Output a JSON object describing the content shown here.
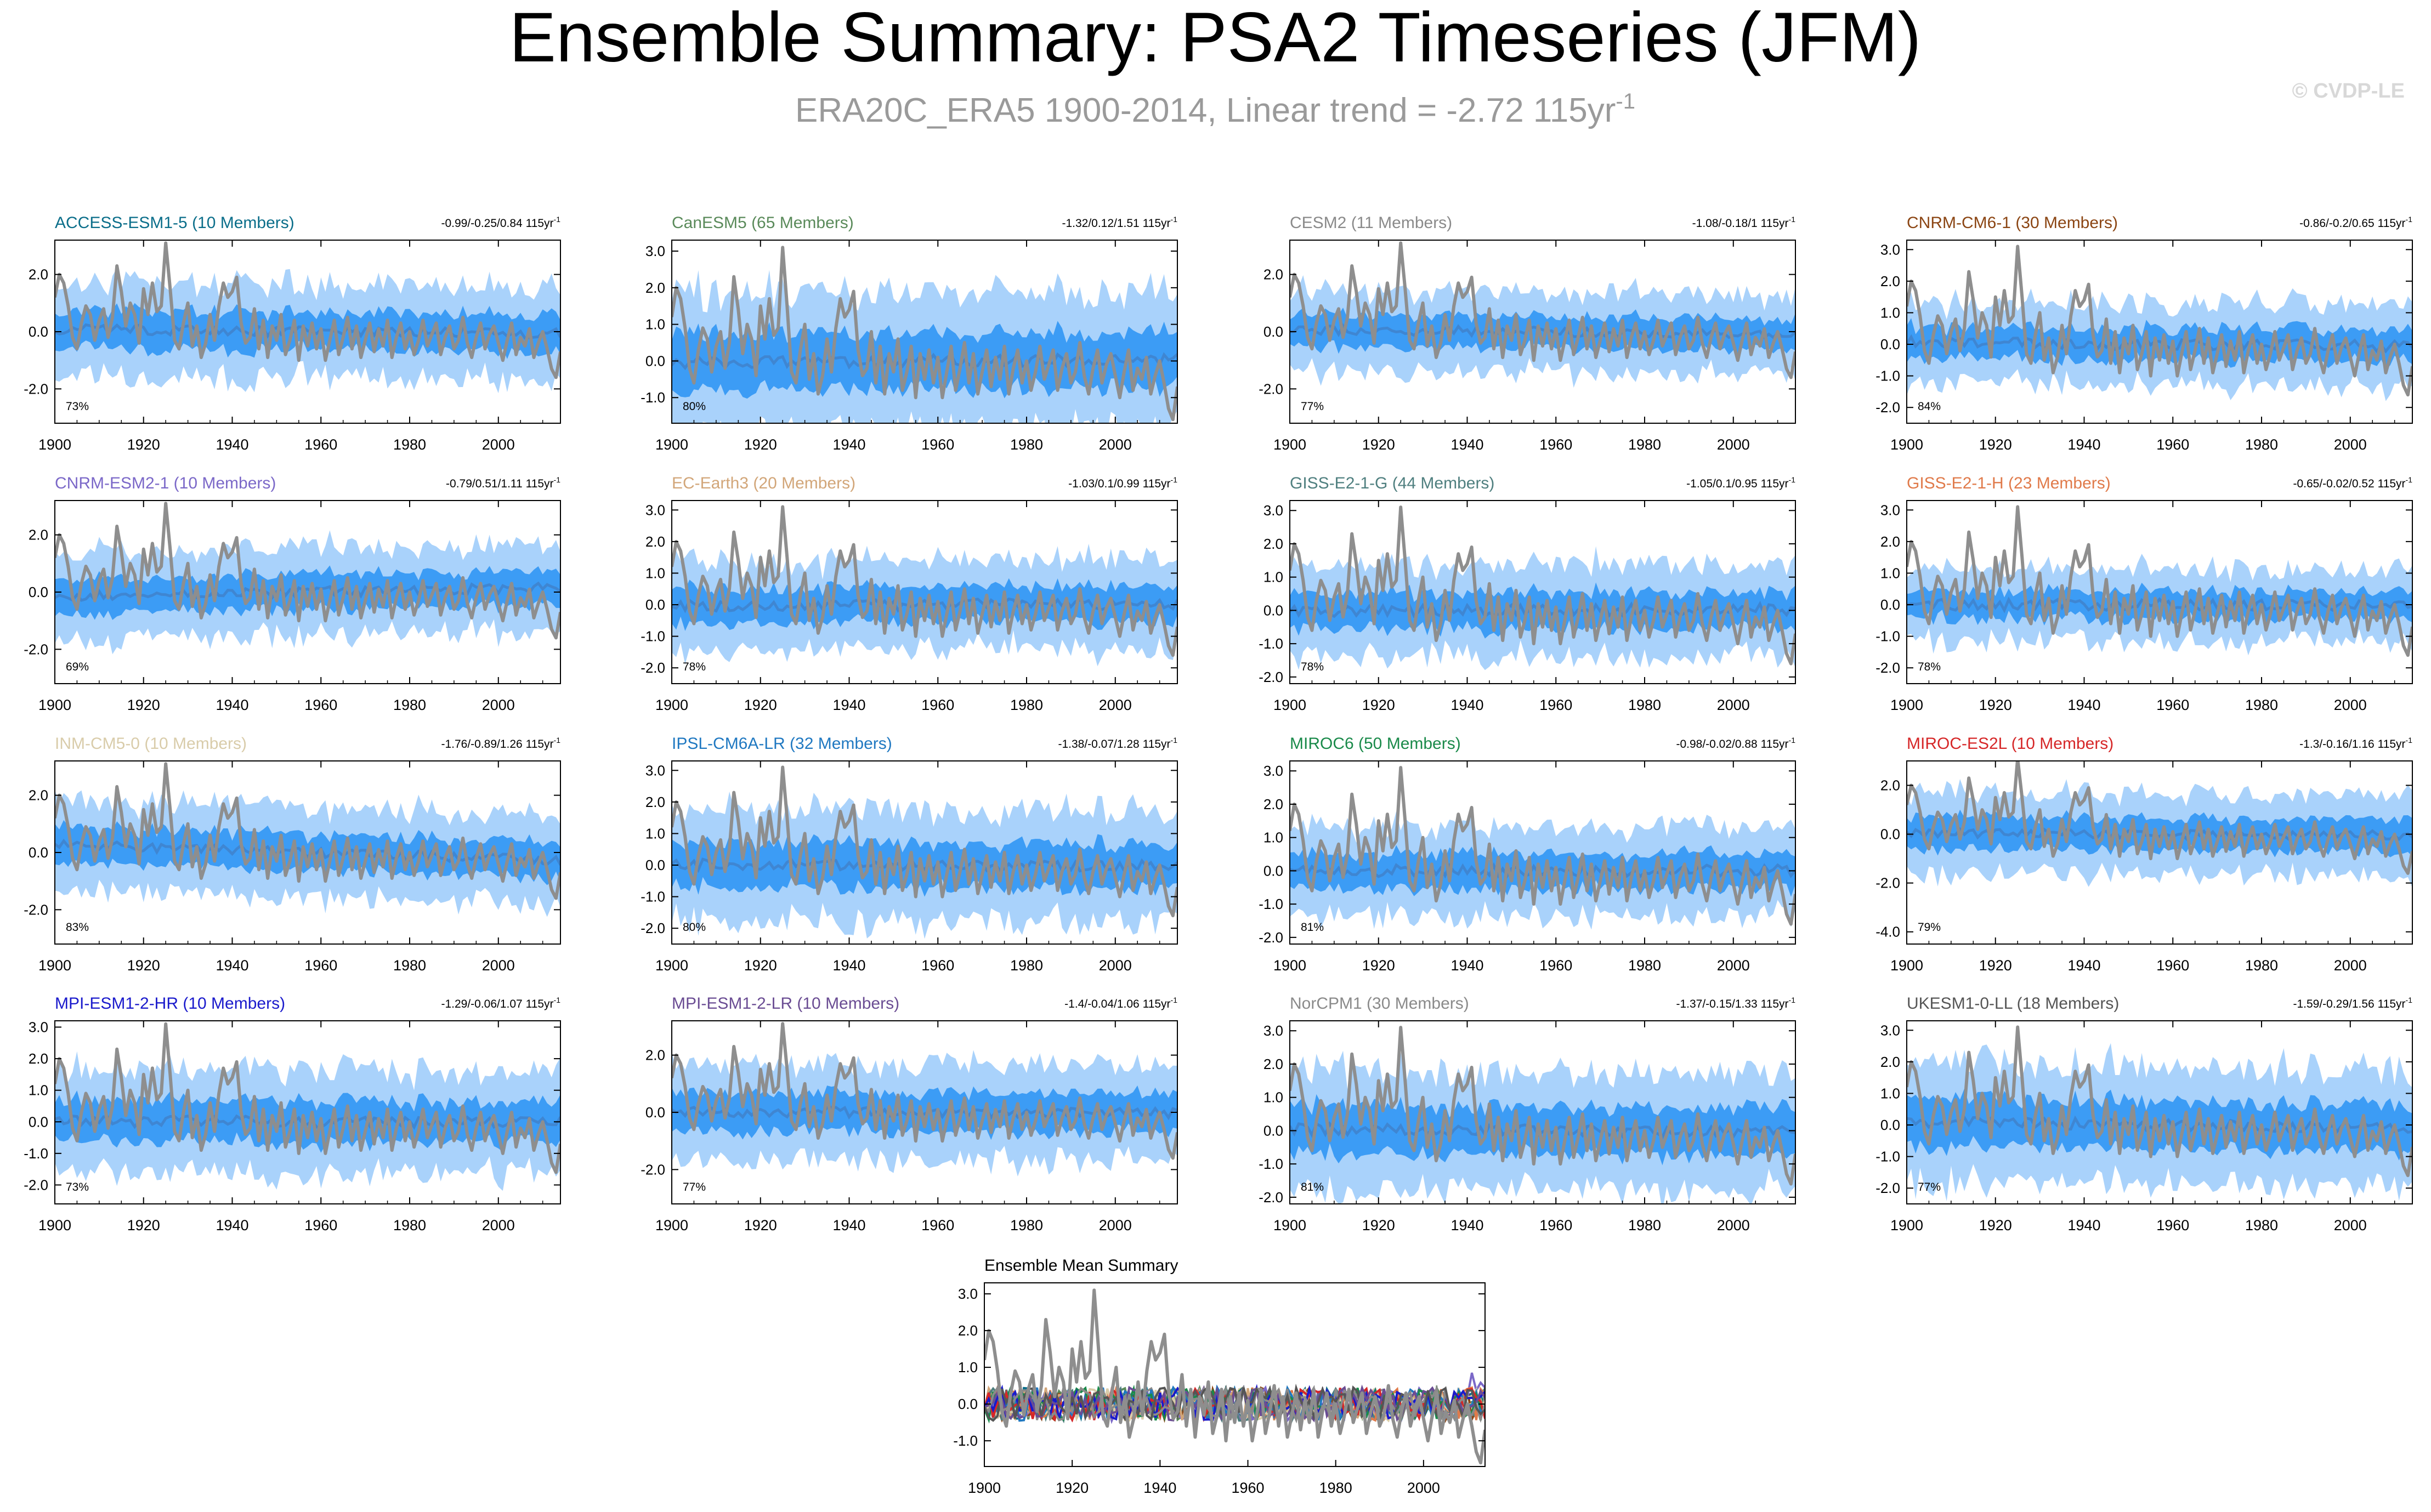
{
  "page": {
    "title": "Ensemble Summary: PSA2 Timeseries (JFM)",
    "subtitle_main": "ERA20C_ERA5 1900-2014, Linear trend = -2.72 115yr",
    "subtitle_sup": "-1",
    "watermark": "© CVDP-LE"
  },
  "colors": {
    "envelope_outer": "#a9d2fb",
    "envelope_inner": "#3c9cf5",
    "ensemble_mean": "#3f86d2",
    "observations": "#8e8e8e"
  },
  "chart_data": {
    "type": "line",
    "x_range": [
      1900,
      2014
    ],
    "x_ticks": [
      1900,
      1920,
      1940,
      1960,
      1980,
      2000
    ],
    "observations_label": "ERA20C_ERA5",
    "panels": [
      {
        "model": "ACCESS-ESM1-5",
        "members": "(10 Members)",
        "title_color": "#0b6e8a",
        "trend_main": "-0.99/-0.25/0.84 115yr",
        "trend_sup": "-1",
        "pct": "73%",
        "ylim": [
          -3.2,
          3.2
        ],
        "yticks": [
          -2,
          0,
          2
        ],
        "ytick_labels": [
          "-2.0",
          "0.0",
          "2.0"
        ],
        "mean_offset": 0.0,
        "trend_slope": -0.2,
        "spread": 1.2
      },
      {
        "model": "CanESM5",
        "members": "(65 Members)",
        "title_color": "#5a8a5a",
        "trend_main": "-1.32/0.12/1.51 115yr",
        "trend_sup": "-1",
        "pct": "80%",
        "ylim": [
          -1.7,
          3.3
        ],
        "yticks": [
          -1,
          0,
          1,
          2,
          3
        ],
        "ytick_labels": [
          "-1.0",
          "0.0",
          "1.0",
          "2.0",
          "3.0"
        ],
        "mean_offset": 0.0,
        "trend_slope": 0.1,
        "spread": 1.4
      },
      {
        "model": "CESM2",
        "members": "(11 Members)",
        "title_color": "#8a8a8a",
        "trend_main": "-1.08/-0.18/1 115yr",
        "trend_sup": "-1",
        "pct": "77%",
        "ylim": [
          -3.2,
          3.2
        ],
        "yticks": [
          -2,
          0,
          2
        ],
        "ytick_labels": [
          "-2.0",
          "0.0",
          "2.0"
        ],
        "mean_offset": 0.0,
        "trend_slope": -0.15,
        "spread": 1.0
      },
      {
        "model": "CNRM-CM6-1",
        "members": "(30 Members)",
        "title_color": "#8b4513",
        "trend_main": "-0.86/-0.2/0.65 115yr",
        "trend_sup": "-1",
        "pct": "84%",
        "ylim": [
          -2.5,
          3.3
        ],
        "yticks": [
          -2,
          -1,
          0,
          1,
          2,
          3
        ],
        "ytick_labels": [
          "-2.0",
          "-1.0",
          "0.0",
          "1.0",
          "2.0",
          "3.0"
        ],
        "mean_offset": 0.0,
        "trend_slope": -0.15,
        "spread": 0.9
      },
      {
        "model": "CNRM-ESM2-1",
        "members": "(10 Members)",
        "title_color": "#7b68c8",
        "trend_main": "-0.79/0.51/1.11 115yr",
        "trend_sup": "-1",
        "pct": "69%",
        "ylim": [
          -3.2,
          3.2
        ],
        "yticks": [
          -2,
          0,
          2
        ],
        "ytick_labels": [
          "-2.0",
          "0.0",
          "2.0"
        ],
        "mean_offset": 0.0,
        "trend_slope": 0.4,
        "spread": 1.1
      },
      {
        "model": "EC-Earth3",
        "members": "(20 Members)",
        "title_color": "#d2a679",
        "trend_main": "-1.03/0.1/0.99 115yr",
        "trend_sup": "-1",
        "pct": "78%",
        "ylim": [
          -2.5,
          3.3
        ],
        "yticks": [
          -2,
          -1,
          0,
          1,
          2,
          3
        ],
        "ytick_labels": [
          "-2.0",
          "-1.0",
          "0.0",
          "1.0",
          "2.0",
          "3.0"
        ],
        "mean_offset": 0.0,
        "trend_slope": 0.08,
        "spread": 1.0
      },
      {
        "model": "GISS-E2-1-G",
        "members": "(44 Members)",
        "title_color": "#4f7f7f",
        "trend_main": "-1.05/0.1/0.95 115yr",
        "trend_sup": "-1",
        "pct": "78%",
        "ylim": [
          -2.2,
          3.3
        ],
        "yticks": [
          -2,
          -1,
          0,
          1,
          2,
          3
        ],
        "ytick_labels": [
          "-2.0",
          "-1.0",
          "0.0",
          "1.0",
          "2.0",
          "3.0"
        ],
        "mean_offset": 0.0,
        "trend_slope": 0.08,
        "spread": 1.0
      },
      {
        "model": "GISS-E2-1-H",
        "members": "(23 Members)",
        "title_color": "#e07a4a",
        "trend_main": "-0.65/-0.02/0.52 115yr",
        "trend_sup": "-1",
        "pct": "78%",
        "ylim": [
          -2.5,
          3.3
        ],
        "yticks": [
          -2,
          -1,
          0,
          1,
          2,
          3
        ],
        "ytick_labels": [
          "-2.0",
          "-1.0",
          "0.0",
          "1.0",
          "2.0",
          "3.0"
        ],
        "mean_offset": 0.0,
        "trend_slope": 0.0,
        "spread": 0.8
      },
      {
        "model": "INM-CM5-0",
        "members": "(10 Members)",
        "title_color": "#d9ccaa",
        "trend_main": "-1.76/-0.89/1.26 115yr",
        "trend_sup": "-1",
        "pct": "83%",
        "ylim": [
          -3.2,
          3.2
        ],
        "yticks": [
          -2,
          0,
          2
        ],
        "ytick_labels": [
          "-2.0",
          "0.0",
          "2.0"
        ],
        "mean_offset": 0.0,
        "trend_slope": -0.7,
        "spread": 1.1
      },
      {
        "model": "IPSL-CM6A-LR",
        "members": "(32 Members)",
        "title_color": "#1f78c1",
        "trend_main": "-1.38/-0.07/1.28 115yr",
        "trend_sup": "-1",
        "pct": "80%",
        "ylim": [
          -2.5,
          3.3
        ],
        "yticks": [
          -2,
          -1,
          0,
          1,
          2,
          3
        ],
        "ytick_labels": [
          "-2.0",
          "-1.0",
          "0.0",
          "1.0",
          "2.0",
          "3.0"
        ],
        "mean_offset": 0.0,
        "trend_slope": -0.05,
        "spread": 1.3
      },
      {
        "model": "MIROC6",
        "members": "(50 Members)",
        "title_color": "#1a8a4a",
        "trend_main": "-0.98/-0.02/0.88 115yr",
        "trend_sup": "-1",
        "pct": "81%",
        "ylim": [
          -2.2,
          3.3
        ],
        "yticks": [
          -2,
          -1,
          0,
          1,
          2,
          3
        ],
        "ytick_labels": [
          "-2.0",
          "-1.0",
          "0.0",
          "1.0",
          "2.0",
          "3.0"
        ],
        "mean_offset": 0.0,
        "trend_slope": 0.0,
        "spread": 0.95
      },
      {
        "model": "MIROC-ES2L",
        "members": "(10 Members)",
        "title_color": "#d62728",
        "trend_main": "-1.3/-0.16/1.16 115yr",
        "trend_sup": "-1",
        "pct": "79%",
        "ylim": [
          -4.5,
          3.0
        ],
        "yticks": [
          -4,
          -2,
          0,
          2
        ],
        "ytick_labels": [
          "-4.0",
          "-2.0",
          "0.0",
          "2.0"
        ],
        "mean_offset": 0.0,
        "trend_slope": -0.1,
        "spread": 1.2
      },
      {
        "model": "MPI-ESM1-2-HR",
        "members": "(10 Members)",
        "title_color": "#1a1acc",
        "trend_main": "-1.29/-0.06/1.07 115yr",
        "trend_sup": "-1",
        "pct": "73%",
        "ylim": [
          -2.6,
          3.2
        ],
        "yticks": [
          -2,
          -1,
          0,
          1,
          2,
          3
        ],
        "ytick_labels": [
          "-2.0",
          "-1.0",
          "0.0",
          "1.0",
          "2.0",
          "3.0"
        ],
        "mean_offset": 0.0,
        "trend_slope": -0.05,
        "spread": 1.2
      },
      {
        "model": "MPI-ESM1-2-LR",
        "members": "(10 Members)",
        "title_color": "#6a4c93",
        "trend_main": "-1.4/-0.04/1.06 115yr",
        "trend_sup": "-1",
        "pct": "77%",
        "ylim": [
          -3.2,
          3.2
        ],
        "yticks": [
          -2,
          0,
          2
        ],
        "ytick_labels": [
          "-2.0",
          "0.0",
          "2.0"
        ],
        "mean_offset": 0.0,
        "trend_slope": -0.03,
        "spread": 1.2
      },
      {
        "model": "NorCPM1",
        "members": "(30 Members)",
        "title_color": "#8a8a8a",
        "trend_main": "-1.37/-0.15/1.33 115yr",
        "trend_sup": "-1",
        "pct": "81%",
        "ylim": [
          -2.2,
          3.3
        ],
        "yticks": [
          -2,
          -1,
          0,
          1,
          2,
          3
        ],
        "ytick_labels": [
          "-2.0",
          "-1.0",
          "0.0",
          "1.0",
          "2.0",
          "3.0"
        ],
        "mean_offset": 0.0,
        "trend_slope": -0.12,
        "spread": 1.3
      },
      {
        "model": "UKESM1-0-LL",
        "members": "(18 Members)",
        "title_color": "#555555",
        "trend_main": "-1.59/-0.29/1.56 115yr",
        "trend_sup": "-1",
        "pct": "77%",
        "ylim": [
          -2.5,
          3.3
        ],
        "yticks": [
          -2,
          -1,
          0,
          1,
          2,
          3
        ],
        "ytick_labels": [
          "-2.0",
          "-1.0",
          "0.0",
          "1.0",
          "2.0",
          "3.0"
        ],
        "mean_offset": 0.0,
        "trend_slope": -0.25,
        "spread": 1.4
      }
    ],
    "summary": {
      "title": "Ensemble Mean Summary",
      "ylim": [
        -1.7,
        3.3
      ],
      "yticks": [
        -1,
        0,
        1,
        2,
        3
      ],
      "ytick_labels": [
        "-1.0",
        "0.0",
        "1.0",
        "2.0",
        "3.0"
      ],
      "series_colors": [
        "#0b6e8a",
        "#5a8a5a",
        "#8a8a8a",
        "#8b4513",
        "#7b68c8",
        "#d2a679",
        "#4f7f7f",
        "#e07a4a",
        "#d9ccaa",
        "#1f78c1",
        "#1a8a4a",
        "#d62728",
        "#1a1acc",
        "#6a4c93",
        "#8a8a8a",
        "#555555"
      ]
    },
    "observations": {
      "years": [
        1900,
        1901,
        1902,
        1903,
        1904,
        1905,
        1906,
        1907,
        1908,
        1909,
        1910,
        1911,
        1912,
        1913,
        1914,
        1915,
        1916,
        1917,
        1918,
        1919,
        1920,
        1921,
        1922,
        1923,
        1924,
        1925,
        1926,
        1927,
        1928,
        1929,
        1930,
        1931,
        1932,
        1933,
        1934,
        1935,
        1936,
        1937,
        1938,
        1939,
        1940,
        1941,
        1942,
        1943,
        1944,
        1945,
        1946,
        1947,
        1948,
        1949,
        1950,
        1951,
        1952,
        1953,
        1954,
        1955,
        1956,
        1957,
        1958,
        1959,
        1960,
        1961,
        1962,
        1963,
        1964,
        1965,
        1966,
        1967,
        1968,
        1969,
        1970,
        1971,
        1972,
        1973,
        1974,
        1975,
        1976,
        1977,
        1978,
        1979,
        1980,
        1981,
        1982,
        1983,
        1984,
        1985,
        1986,
        1987,
        1988,
        1989,
        1990,
        1991,
        1992,
        1993,
        1994,
        1995,
        1996,
        1997,
        1998,
        1999,
        2000,
        2001,
        2002,
        2003,
        2004,
        2005,
        2006,
        2007,
        2008,
        2009,
        2010,
        2011,
        2012,
        2013,
        2014
      ],
      "values": [
        1.2,
        2.0,
        1.7,
        0.9,
        -0.2,
        -0.6,
        0.3,
        0.9,
        0.6,
        -0.3,
        0.4,
        0.8,
        -0.2,
        0.5,
        2.3,
        1.4,
        0.2,
        1.0,
        0.6,
        -0.4,
        1.5,
        0.6,
        1.7,
        0.7,
        0.9,
        3.1,
        1.5,
        -0.3,
        -0.6,
        0.3,
        1.0,
        -0.5,
        0.2,
        -0.9,
        -0.4,
        0.6,
        -0.3,
        0.9,
        1.7,
        1.2,
        1.4,
        1.9,
        0.3,
        -0.4,
        -0.2,
        0.8,
        -0.6,
        0.4,
        -0.9,
        0.2,
        -0.3,
        0.6,
        -0.8,
        -0.3,
        0.4,
        -1.0,
        0.2,
        -0.5,
        0.3,
        -0.6,
        0.1,
        -1.0,
        -0.3,
        0.4,
        -0.8,
        -0.2,
        0.5,
        -0.6,
        0.2,
        -0.9,
        -0.3,
        0.3,
        -0.7,
        0.1,
        -0.5,
        0.4,
        -0.9,
        -0.2,
        0.3,
        -0.6,
        0.0,
        -0.8,
        -0.3,
        0.4,
        -0.5,
        -0.1,
        0.3,
        -0.8,
        -0.2,
        0.2,
        -0.6,
        -0.3,
        0.5,
        -0.4,
        -0.9,
        -0.2,
        0.3,
        -0.6,
        -0.1,
        0.2,
        -0.4,
        -1.0,
        -0.3,
        0.3,
        -0.8,
        -0.2,
        -0.5,
        0.1,
        -0.9,
        -0.4,
        0.0,
        -0.6,
        -1.3,
        -1.6,
        -0.7
      ]
    }
  }
}
